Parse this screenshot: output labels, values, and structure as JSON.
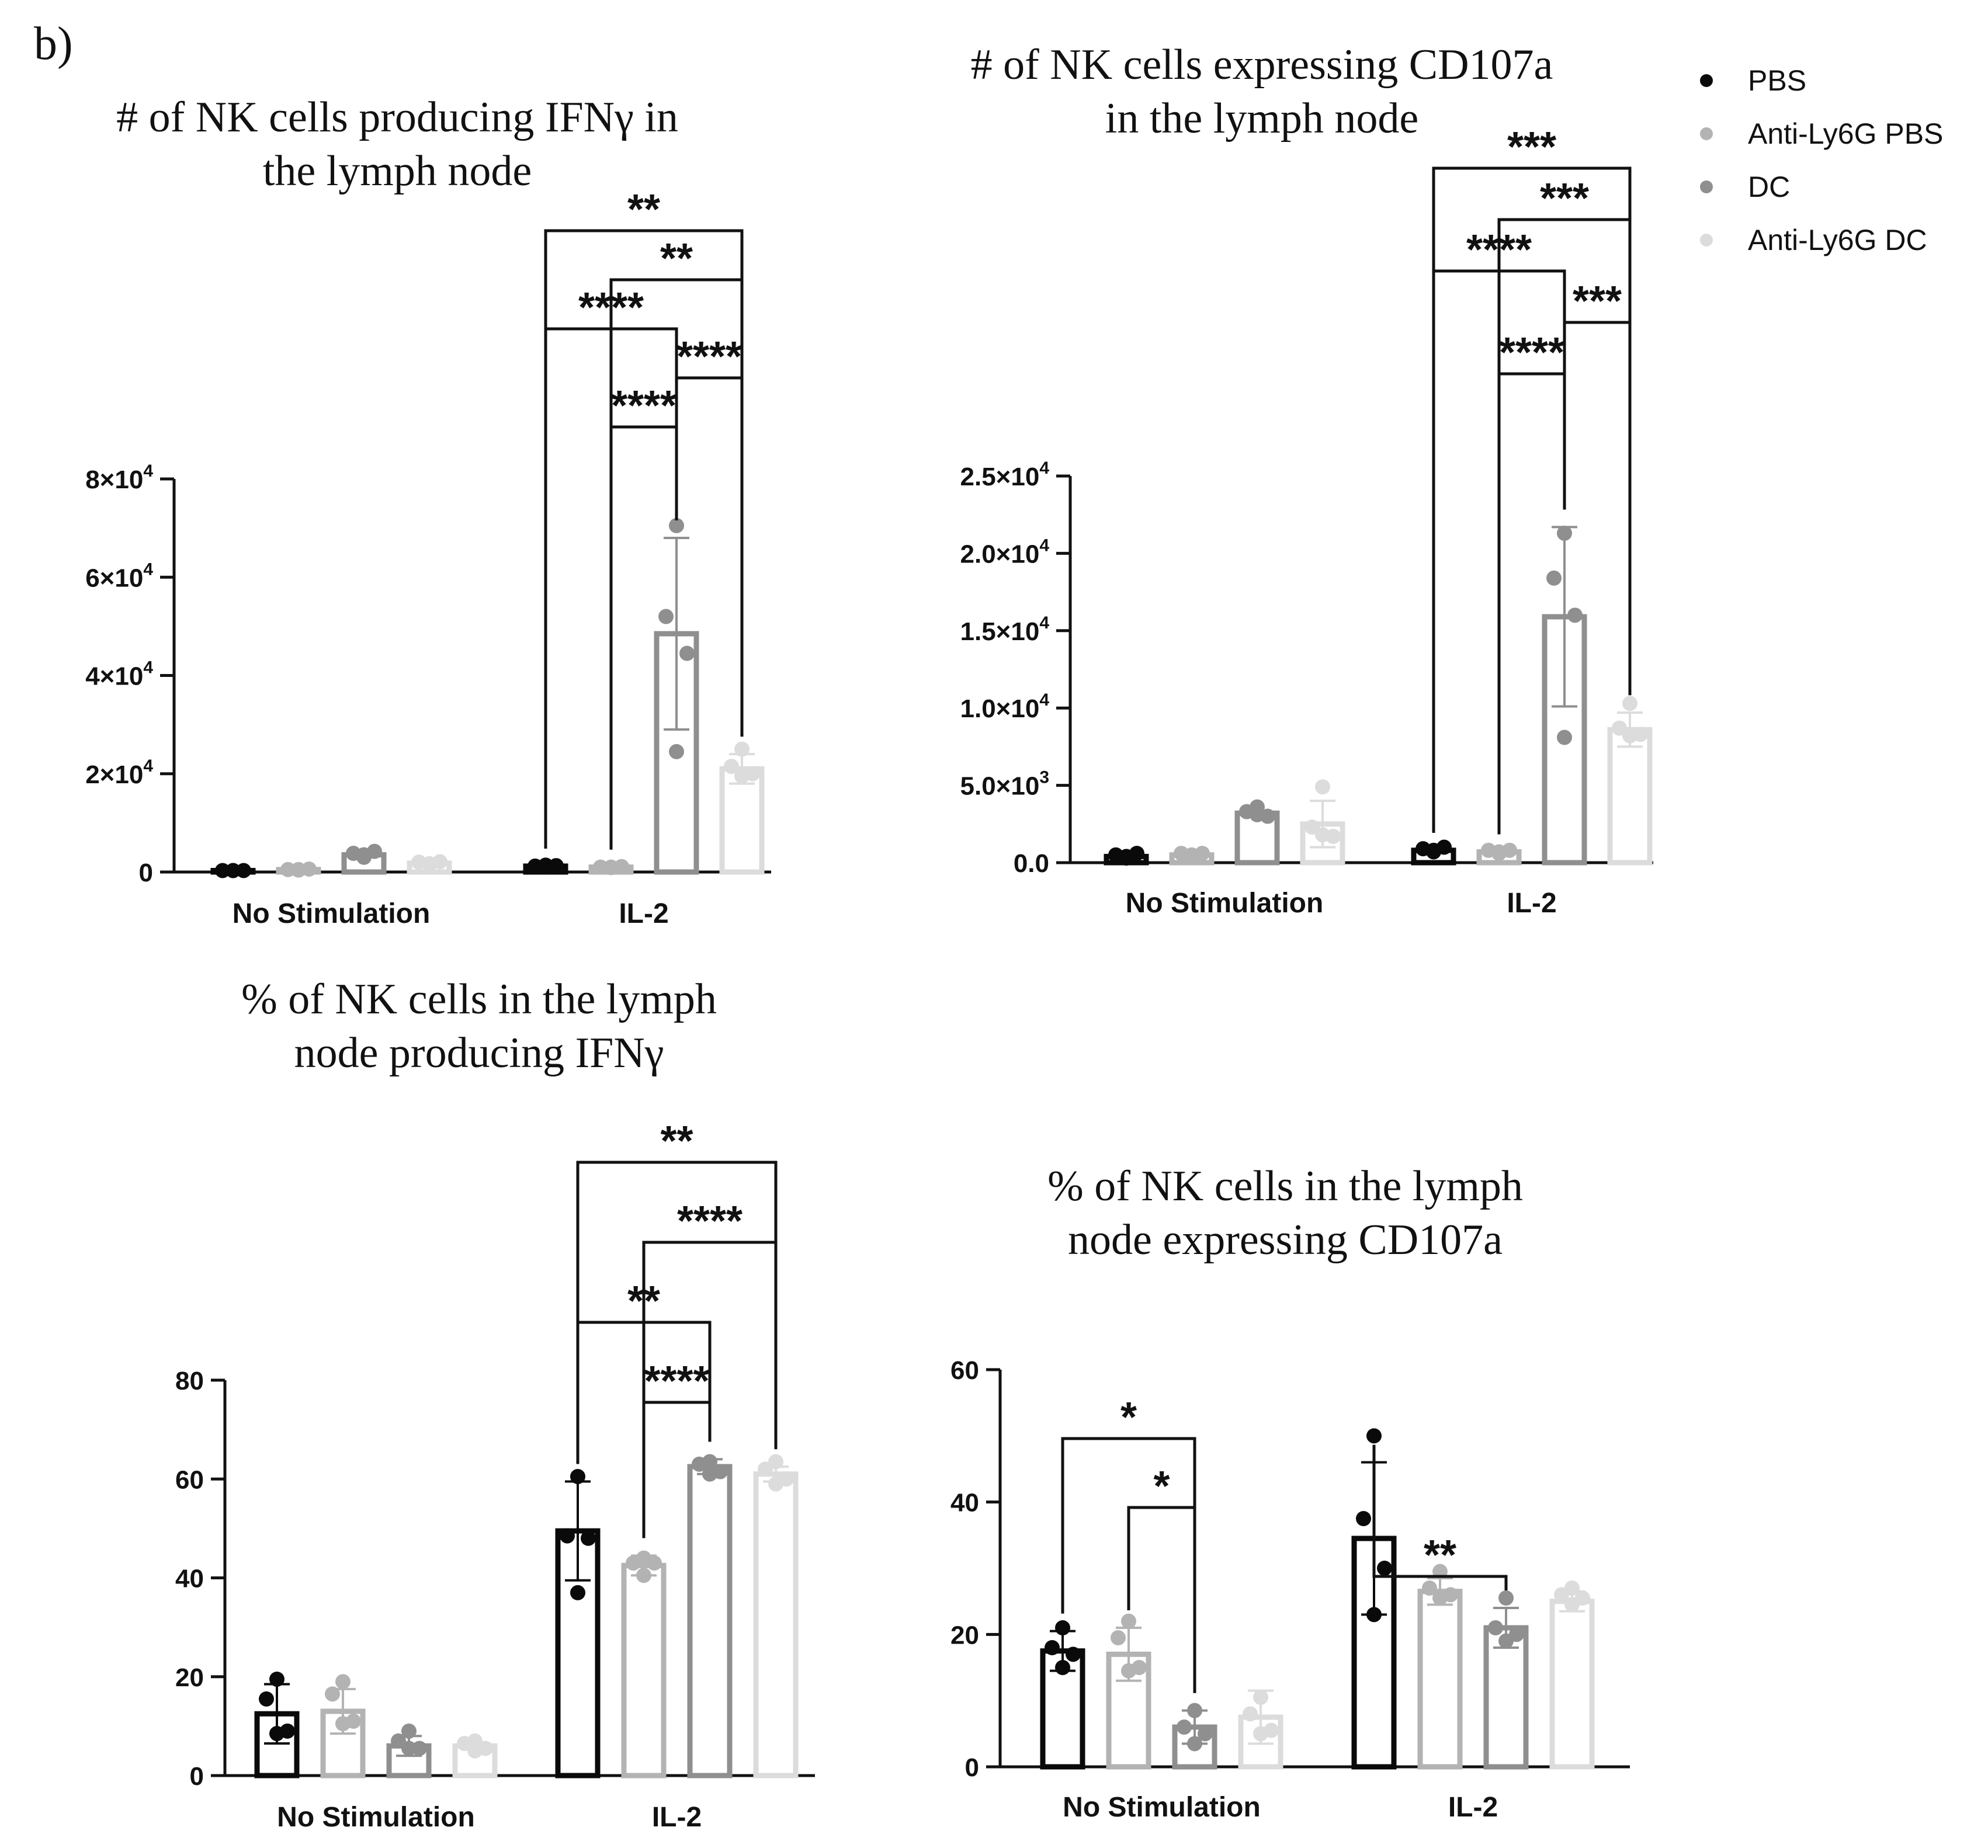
{
  "panel_label": "b)",
  "legend": [
    {
      "label": "PBS",
      "color": "#0a0a0a"
    },
    {
      "label": "Anti-Ly6G PBS",
      "color": "#b3b3b3"
    },
    {
      "label": "DC",
      "color": "#8f8f8f"
    },
    {
      "label": "Anti-Ly6G DC",
      "color": "#dcdcdc"
    }
  ],
  "chart_data": [
    {
      "type": "bar",
      "title_lines": [
        "# of NK cells producing IFNγ in",
        "the lymph node"
      ],
      "categories": [
        "No Stimulation",
        "IL-2"
      ],
      "ylim": [
        0,
        80000
      ],
      "yticks": [
        {
          "v": 0,
          "base": "0"
        },
        {
          "v": 20000,
          "base": "2×10",
          "exp": "4"
        },
        {
          "v": 40000,
          "base": "4×10",
          "exp": "4"
        },
        {
          "v": 60000,
          "base": "6×10",
          "exp": "4"
        },
        {
          "v": 80000,
          "base": "8×10",
          "exp": "4"
        }
      ],
      "series": [
        {
          "name": "PBS",
          "values": [
            300,
            1200
          ],
          "errors": [
            0,
            0
          ],
          "points": [
            [
              300,
              300,
              300,
              300
            ],
            [
              1000,
              1200,
              1300,
              1400
            ]
          ]
        },
        {
          "name": "Anti-Ly6G PBS",
          "values": [
            500,
            1000
          ],
          "errors": [
            0,
            0
          ],
          "points": [
            [
              400,
              500,
              600,
              500
            ],
            [
              900,
              1000,
              1100,
              1000
            ]
          ]
        },
        {
          "name": "DC",
          "values": [
            3500,
            48500
          ],
          "errors": [
            0,
            19500
          ],
          "points": [
            [
              3000,
              3800,
              4200,
              3500
            ],
            [
              70500,
              52000,
              44500,
              24500
            ]
          ]
        },
        {
          "name": "Anti-Ly6G DC",
          "values": [
            1800,
            21000
          ],
          "errors": [
            0,
            3000
          ],
          "points": [
            [
              1500,
              2000,
              2100,
              1700
            ],
            [
              25000,
              21500,
              20000,
              19500
            ]
          ]
        }
      ],
      "significance": [
        {
          "from": [
            1,
            0
          ],
          "to": [
            1,
            3
          ],
          "label": "**"
        },
        {
          "from": [
            1,
            1
          ],
          "to": [
            1,
            3
          ],
          "label": "**"
        },
        {
          "from": [
            1,
            0
          ],
          "to": [
            1,
            2
          ],
          "label": "****"
        },
        {
          "from": [
            1,
            2
          ],
          "to": [
            1,
            3
          ],
          "label": "****"
        },
        {
          "from": [
            1,
            1
          ],
          "to": [
            1,
            2
          ],
          "label": "****"
        }
      ]
    },
    {
      "type": "bar",
      "title_lines": [
        "# of NK cells expressing CD107a",
        "in the lymph node"
      ],
      "categories": [
        "No Stimulation",
        "IL-2"
      ],
      "ylim": [
        0,
        25000
      ],
      "yticks": [
        {
          "v": 0,
          "base": "0.0"
        },
        {
          "v": 5000,
          "base": "5.0×10",
          "exp": "3"
        },
        {
          "v": 10000,
          "base": "1.0×10",
          "exp": "4"
        },
        {
          "v": 15000,
          "base": "1.5×10",
          "exp": "4"
        },
        {
          "v": 20000,
          "base": "2.0×10",
          "exp": "4"
        },
        {
          "v": 25000,
          "base": "2.5×10",
          "exp": "4"
        }
      ],
      "series": [
        {
          "name": "PBS",
          "values": [
            400,
            800
          ],
          "errors": [
            0,
            0
          ],
          "points": [
            [
              300,
              500,
              600,
              400
            ],
            [
              700,
              900,
              1000,
              800
            ]
          ]
        },
        {
          "name": "Anti-Ly6G PBS",
          "values": [
            500,
            700
          ],
          "errors": [
            0,
            0
          ],
          "points": [
            [
              400,
              600,
              600,
              500
            ],
            [
              600,
              800,
              800,
              700
            ]
          ]
        },
        {
          "name": "DC",
          "values": [
            3200,
            15900
          ],
          "errors": [
            0,
            5800
          ],
          "points": [
            [
              3600,
              3300,
              3000,
              3100
            ],
            [
              21300,
              18400,
              16000,
              8100
            ]
          ]
        },
        {
          "name": "Anti-Ly6G DC",
          "values": [
            2500,
            8600
          ],
          "errors": [
            1500,
            1100
          ],
          "points": [
            [
              4900,
              2300,
              1700,
              1800
            ],
            [
              10300,
              8700,
              8300,
              8200
            ]
          ]
        }
      ],
      "significance": [
        {
          "from": [
            1,
            0
          ],
          "to": [
            1,
            3
          ],
          "label": "***"
        },
        {
          "from": [
            1,
            1
          ],
          "to": [
            1,
            3
          ],
          "label": "***"
        },
        {
          "from": [
            1,
            0
          ],
          "to": [
            1,
            2
          ],
          "label": "****"
        },
        {
          "from": [
            1,
            2
          ],
          "to": [
            1,
            3
          ],
          "label": "***"
        },
        {
          "from": [
            1,
            1
          ],
          "to": [
            1,
            2
          ],
          "label": "****"
        }
      ]
    },
    {
      "type": "bar",
      "title_lines": [
        "% of NK cells in the lymph",
        "node producing IFNγ"
      ],
      "categories": [
        "No Stimulation",
        "IL-2"
      ],
      "ylim": [
        0,
        80
      ],
      "yticks": [
        {
          "v": 0,
          "base": "0"
        },
        {
          "v": 20,
          "base": "20"
        },
        {
          "v": 40,
          "base": "40"
        },
        {
          "v": 60,
          "base": "60"
        },
        {
          "v": 80,
          "base": "80"
        }
      ],
      "series": [
        {
          "name": "PBS",
          "values": [
            12.5,
            49.5
          ],
          "errors": [
            6,
            10
          ],
          "points": [
            [
              19.5,
              15.5,
              9,
              8.5
            ],
            [
              60.5,
              48.5,
              48,
              37
            ]
          ]
        },
        {
          "name": "Anti-Ly6G PBS",
          "values": [
            13,
            42.5
          ],
          "errors": [
            4.5,
            2
          ],
          "points": [
            [
              19,
              16.5,
              11,
              10.5
            ],
            [
              44,
              43,
              43,
              40.5
            ]
          ]
        },
        {
          "name": "DC",
          "values": [
            6,
            62.5
          ],
          "errors": [
            2,
            1.5
          ],
          "points": [
            [
              9,
              7,
              5.5,
              5.5
            ],
            [
              63.5,
              63,
              61.5,
              61
            ]
          ]
        },
        {
          "name": "Anti-Ly6G DC",
          "values": [
            6,
            61
          ],
          "errors": [
            0,
            1.5
          ],
          "points": [
            [
              7,
              6.5,
              5.5,
              5
            ],
            [
              63.5,
              62,
              60,
              59
            ]
          ]
        }
      ],
      "significance": [
        {
          "from": [
            1,
            0
          ],
          "to": [
            1,
            3
          ],
          "label": "**"
        },
        {
          "from": [
            1,
            1
          ],
          "to": [
            1,
            3
          ],
          "label": "****"
        },
        {
          "from": [
            1,
            0
          ],
          "to": [
            1,
            2
          ],
          "label": "**"
        },
        {
          "from": [
            1,
            1
          ],
          "to": [
            1,
            2
          ],
          "label": "****"
        }
      ]
    },
    {
      "type": "bar",
      "title_lines": [
        "% of NK cells in the lymph",
        "node expressing CD107a"
      ],
      "categories": [
        "No Stimulation",
        "IL-2"
      ],
      "ylim": [
        0,
        60
      ],
      "yticks": [
        {
          "v": 0,
          "base": "0"
        },
        {
          "v": 20,
          "base": "20"
        },
        {
          "v": 40,
          "base": "40"
        },
        {
          "v": 60,
          "base": "60"
        }
      ],
      "series": [
        {
          "name": "PBS",
          "values": [
            17.5,
            34.5
          ],
          "errors": [
            3,
            11.5
          ],
          "points": [
            [
              21,
              18,
              17,
              15
            ],
            [
              50,
              37.5,
              30,
              23
            ]
          ]
        },
        {
          "name": "Anti-Ly6G PBS",
          "values": [
            17,
            26.5
          ],
          "errors": [
            4,
            2
          ],
          "points": [
            [
              22,
              19.5,
              15,
              14.5
            ],
            [
              29.5,
              27,
              26,
              25.5
            ]
          ]
        },
        {
          "name": "DC",
          "values": [
            6,
            21
          ],
          "errors": [
            2.5,
            3
          ],
          "points": [
            [
              8.5,
              6,
              5,
              3.5
            ],
            [
              25.5,
              21,
              20,
              19
            ]
          ]
        },
        {
          "name": "Anti-Ly6G DC",
          "values": [
            7.5,
            25
          ],
          "errors": [
            4,
            1.5
          ],
          "points": [
            [
              10.5,
              8,
              5.5,
              5
            ],
            [
              27,
              26,
              25.5,
              24.5
            ]
          ]
        }
      ],
      "significance": [
        {
          "from": [
            0,
            0
          ],
          "to": [
            0,
            2
          ],
          "label": "*"
        },
        {
          "from": [
            0,
            1
          ],
          "to": [
            0,
            2
          ],
          "label": "*"
        },
        {
          "from": [
            1,
            0
          ],
          "to": [
            1,
            2
          ],
          "label": "**"
        }
      ]
    }
  ]
}
